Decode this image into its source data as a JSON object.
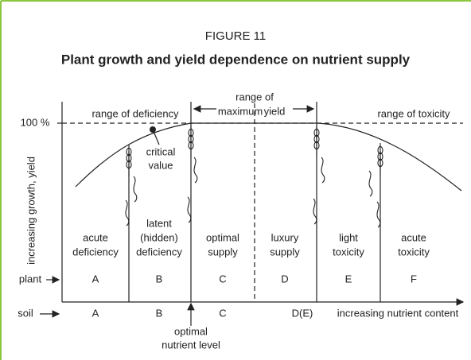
{
  "figure": {
    "number": "FIGURE 11",
    "title": "Plant growth and yield dependence on nutrient supply"
  },
  "axes": {
    "y_label": "increasing growth, yield",
    "y_top": "100 %",
    "x_label": "increasing nutrient content",
    "plant_row": "plant",
    "soil_row": "soil"
  },
  "ranges": {
    "deficiency": "range of deficiency",
    "maximum": [
      "range of",
      "maximum",
      "yield"
    ],
    "toxicity": "range of toxicity"
  },
  "critical": [
    "critical",
    "value"
  ],
  "optimal_level": [
    "optimal",
    "nutrient level"
  ],
  "zones": [
    {
      "label": [
        "acute",
        "deficiency"
      ],
      "plant": "A",
      "soil": "A"
    },
    {
      "label": [
        "latent",
        "(hidden)",
        "deficiency"
      ],
      "plant": "B",
      "soil": "B"
    },
    {
      "label": [
        "optimal",
        "supply"
      ],
      "plant": "C",
      "soil": "C"
    },
    {
      "label": [
        "luxury",
        "supply"
      ],
      "plant": "D",
      "soil": "D(E)"
    },
    {
      "label": [
        "light",
        "toxicity"
      ],
      "plant": "E",
      "soil": null
    },
    {
      "label": [
        "acute",
        "toxicity"
      ],
      "plant": "F",
      "soil": null
    }
  ]
}
